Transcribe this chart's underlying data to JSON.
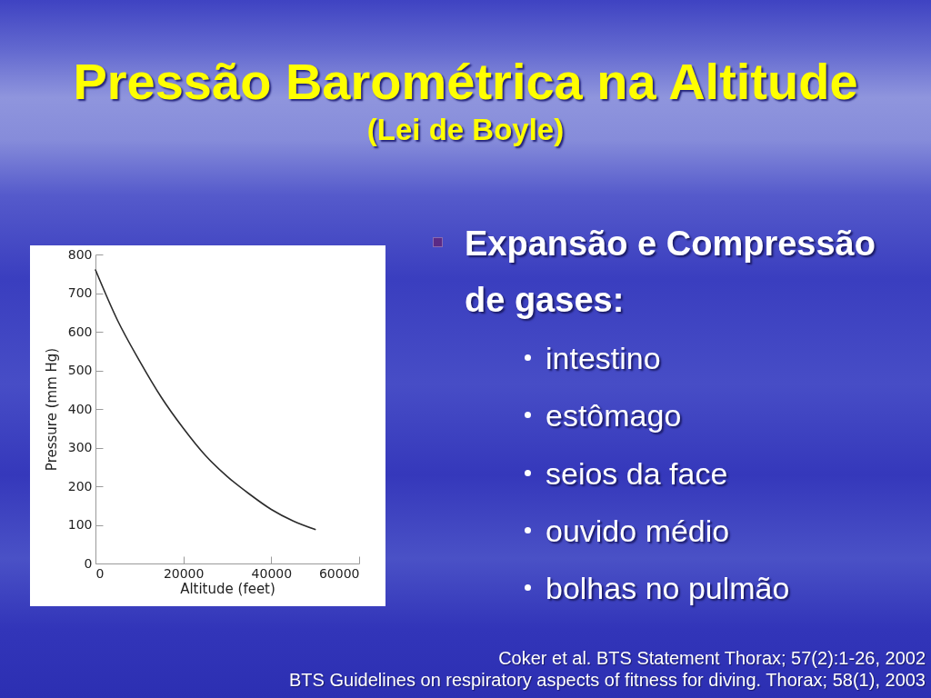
{
  "chart_data": {
    "type": "line",
    "title": "Pressão Barométrica na Altitude",
    "subtitle": "(Lei de Boyle)",
    "xlabel": "Altitude (feet)",
    "ylabel": "Pressure (mm Hg)",
    "x": [
      0,
      5000,
      10000,
      15000,
      20000,
      25000,
      30000,
      35000,
      40000,
      45000,
      50000
    ],
    "series": [
      {
        "color": "#2b2b2b",
        "values": [
          760,
          630,
          525,
          430,
          350,
          280,
          225,
          180,
          140,
          110,
          88
        ]
      }
    ],
    "xlim": [
      0,
      60000
    ],
    "xticks": [
      0,
      20000,
      40000,
      60000
    ],
    "ylim": [
      0,
      800
    ],
    "yticks": [
      0,
      100,
      200,
      300,
      400,
      500,
      600,
      700,
      800
    ],
    "annotations": [
      "Expansão e Compressão de gases:",
      "intestino",
      "estômago",
      "seios da face",
      "ouvido médio",
      "bolhas no pulmão",
      "Coker et al. BTS Statement Thorax; 57(2):1-26, 2002",
      "BTS Guidelines on respiratory aspects of fitness for diving. Thorax; 58(1), 2003"
    ]
  }
}
